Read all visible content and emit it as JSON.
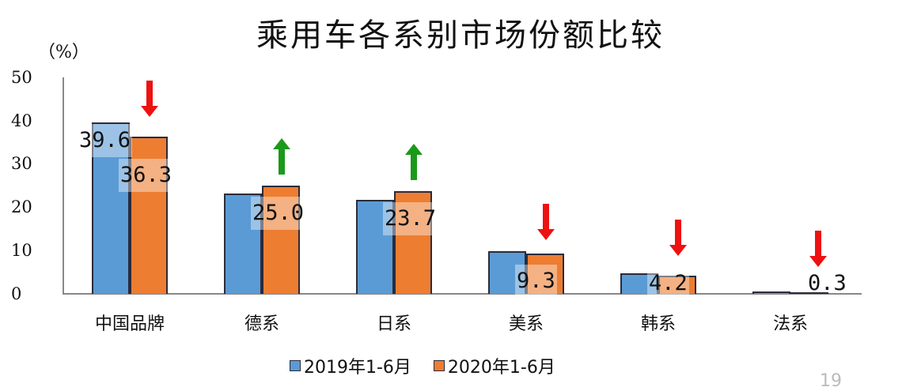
{
  "title": "乘用车各系别市场份额比较",
  "unit_label": "（%）",
  "page_number": "19",
  "legend": {
    "series_2019": "2019年1-6月",
    "series_2020": "2020年1-6月"
  },
  "y_ticks": [
    "50",
    "40",
    "30",
    "20",
    "10",
    "0"
  ],
  "categories": [
    "中国品牌",
    "德系",
    "日系",
    "美系",
    "韩系",
    "法系"
  ],
  "value_labels_2020": [
    "36.3",
    "25.0",
    "23.7",
    "9.3",
    "4.2",
    "0.3"
  ],
  "value_label_2019_first": "39.6",
  "trend_arrows": [
    "down",
    "up",
    "up",
    "down",
    "down",
    "down"
  ],
  "colors": {
    "series_2019": "#5b9bd5",
    "series_2020": "#ed7d31",
    "arrow_up": "#1a9a1a",
    "arrow_down": "#ee1111"
  },
  "chart_data": {
    "type": "bar",
    "title": "乘用车各系别市场份额比较",
    "xlabel": "",
    "ylabel": "（%）",
    "ylim": [
      0,
      50
    ],
    "yticks": [
      0,
      10,
      20,
      30,
      40,
      50
    ],
    "grid": false,
    "legend_position": "bottom",
    "categories": [
      "中国品牌",
      "德系",
      "日系",
      "美系",
      "韩系",
      "法系"
    ],
    "series": [
      {
        "name": "2019年1-6月",
        "values": [
          39.6,
          23.2,
          21.8,
          9.8,
          4.8,
          0.6
        ]
      },
      {
        "name": "2020年1-6月",
        "values": [
          36.3,
          25.0,
          23.7,
          9.3,
          4.2,
          0.3
        ]
      }
    ],
    "annotations": [
      {
        "category": "中国品牌",
        "arrow": "down",
        "color": "red"
      },
      {
        "category": "德系",
        "arrow": "up",
        "color": "green"
      },
      {
        "category": "日系",
        "arrow": "up",
        "color": "green"
      },
      {
        "category": "美系",
        "arrow": "down",
        "color": "red"
      },
      {
        "category": "韩系",
        "arrow": "down",
        "color": "red"
      },
      {
        "category": "法系",
        "arrow": "down",
        "color": "red"
      }
    ]
  }
}
